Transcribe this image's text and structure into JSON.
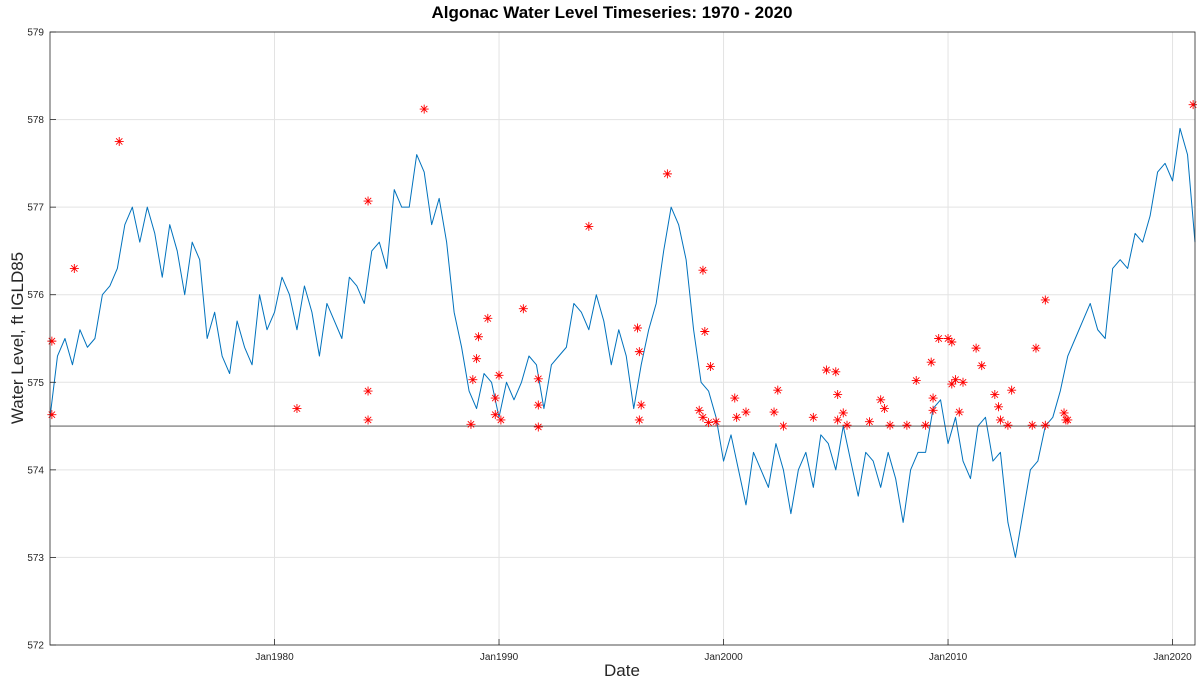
{
  "chart_data": {
    "type": "line",
    "title": "Algonac Water Level Timeseries: 1970 - 2020",
    "xlabel": "Date",
    "ylabel": "Water Level, ft IGLD85",
    "xlim": [
      "1970-01",
      "2021-01"
    ],
    "xticks": [
      {
        "value": "1980-01",
        "label": "Jan1980"
      },
      {
        "value": "1990-01",
        "label": "Jan1990"
      },
      {
        "value": "2000-01",
        "label": "Jan2000"
      },
      {
        "value": "2010-01",
        "label": "Jan2010"
      },
      {
        "value": "2020-01",
        "label": "Jan2020"
      }
    ],
    "ylim": [
      572,
      579
    ],
    "yticks": [
      572,
      573,
      574,
      575,
      576,
      577,
      578,
      579
    ],
    "grid": true,
    "reference_line": {
      "value": 574.5,
      "color": "#404040"
    },
    "series": [
      {
        "color": "#0072bd",
        "line": true,
        "x": [
          "1970-01",
          "1970-05",
          "1970-09",
          "1971-01",
          "1971-05",
          "1971-09",
          "1972-01",
          "1972-05",
          "1972-09",
          "1973-01",
          "1973-05",
          "1973-09",
          "1974-01",
          "1974-05",
          "1974-09",
          "1975-01",
          "1975-05",
          "1975-09",
          "1976-01",
          "1976-05",
          "1976-09",
          "1977-01",
          "1977-05",
          "1977-09",
          "1978-01",
          "1978-05",
          "1978-09",
          "1979-01",
          "1979-05",
          "1979-09",
          "1980-01",
          "1980-05",
          "1980-09",
          "1981-01",
          "1981-05",
          "1981-09",
          "1982-01",
          "1982-05",
          "1982-09",
          "1983-01",
          "1983-05",
          "1983-09",
          "1984-01",
          "1984-05",
          "1984-09",
          "1985-01",
          "1985-05",
          "1985-09",
          "1986-01",
          "1986-05",
          "1986-09",
          "1987-01",
          "1987-05",
          "1987-09",
          "1988-01",
          "1988-05",
          "1988-09",
          "1989-01",
          "1989-05",
          "1989-09",
          "1990-01",
          "1990-05",
          "1990-09",
          "1991-01",
          "1991-05",
          "1991-09",
          "1992-01",
          "1992-05",
          "1992-09",
          "1993-01",
          "1993-05",
          "1993-09",
          "1994-01",
          "1994-05",
          "1994-09",
          "1995-01",
          "1995-05",
          "1995-09",
          "1996-01",
          "1996-05",
          "1996-09",
          "1997-01",
          "1997-05",
          "1997-09",
          "1998-01",
          "1998-05",
          "1998-09",
          "1999-01",
          "1999-05",
          "1999-09",
          "2000-01",
          "2000-05",
          "2000-09",
          "2001-01",
          "2001-05",
          "2001-09",
          "2002-01",
          "2002-05",
          "2002-09",
          "2003-01",
          "2003-05",
          "2003-09",
          "2004-01",
          "2004-05",
          "2004-09",
          "2005-01",
          "2005-05",
          "2005-09",
          "2006-01",
          "2006-05",
          "2006-09",
          "2007-01",
          "2007-05",
          "2007-09",
          "2008-01",
          "2008-05",
          "2008-09",
          "2009-01",
          "2009-05",
          "2009-09",
          "2010-01",
          "2010-05",
          "2010-09",
          "2011-01",
          "2011-05",
          "2011-09",
          "2012-01",
          "2012-05",
          "2012-09",
          "2013-01",
          "2013-05",
          "2013-09",
          "2014-01",
          "2014-05",
          "2014-09",
          "2015-01",
          "2015-05",
          "2015-09",
          "2016-01",
          "2016-05",
          "2016-09",
          "2017-01",
          "2017-05",
          "2017-09",
          "2018-01",
          "2018-05",
          "2018-09",
          "2019-01",
          "2019-05",
          "2019-09",
          "2020-01",
          "2020-05",
          "2020-09",
          "2021-01"
        ],
        "values": [
          574.6,
          575.3,
          575.5,
          575.2,
          575.6,
          575.4,
          575.5,
          576.0,
          576.1,
          576.3,
          576.8,
          577.0,
          576.6,
          577.0,
          576.7,
          576.2,
          576.8,
          576.5,
          576.0,
          576.6,
          576.4,
          575.5,
          575.8,
          575.3,
          575.1,
          575.7,
          575.4,
          575.2,
          576.0,
          575.6,
          575.8,
          576.2,
          576.0,
          575.6,
          576.1,
          575.8,
          575.3,
          575.9,
          575.7,
          575.5,
          576.2,
          576.1,
          575.9,
          576.5,
          576.6,
          576.3,
          577.2,
          577.0,
          577.0,
          577.6,
          577.4,
          576.8,
          577.1,
          576.6,
          575.8,
          575.4,
          574.9,
          574.7,
          575.1,
          575.0,
          574.6,
          575.0,
          574.8,
          575.0,
          575.3,
          575.2,
          574.7,
          575.2,
          575.3,
          575.4,
          575.9,
          575.8,
          575.6,
          576.0,
          575.7,
          575.2,
          575.6,
          575.3,
          574.7,
          575.2,
          575.6,
          575.9,
          576.5,
          577.0,
          576.8,
          576.4,
          575.6,
          575.0,
          574.9,
          574.6,
          574.1,
          574.4,
          574.0,
          573.6,
          574.2,
          574.0,
          573.8,
          574.3,
          574.0,
          573.5,
          574.0,
          574.2,
          573.8,
          574.4,
          574.3,
          574.0,
          574.5,
          574.1,
          573.7,
          574.2,
          574.1,
          573.8,
          574.2,
          573.9,
          573.4,
          574.0,
          574.2,
          574.2,
          574.7,
          574.8,
          574.3,
          574.6,
          574.1,
          573.9,
          574.5,
          574.6,
          574.1,
          574.2,
          573.4,
          573.0,
          573.5,
          574.0,
          574.1,
          574.5,
          574.6,
          574.9,
          575.3,
          575.5,
          575.7,
          575.9,
          575.6,
          575.5,
          576.3,
          576.4,
          576.3,
          576.7,
          576.6,
          576.9,
          577.4,
          577.5,
          577.3,
          577.9,
          577.6,
          576.6
        ]
      },
      {
        "color": "#ff0000",
        "line": false,
        "marker": "asterisk",
        "x": [
          "1970-02",
          "1970-02",
          "1971-02",
          "1973-02",
          "1981-01",
          "1984-03",
          "1984-03",
          "1984-03",
          "1986-09",
          "1988-10",
          "1988-11",
          "1989-01",
          "1989-02",
          "1989-07",
          "1989-11",
          "1990-01",
          "1989-11",
          "1990-02",
          "1991-02",
          "1991-10",
          "1991-10",
          "1991-10",
          "1994-01",
          "1996-03",
          "1996-04",
          "1996-04",
          "1996-05",
          "1997-07",
          "1999-02",
          "1999-03",
          "1999-06",
          "1998-12",
          "1999-02",
          "1999-05",
          "1999-09",
          "2000-07",
          "2000-08",
          "2001-01",
          "2002-06",
          "2002-04",
          "2002-09",
          "2004-01",
          "2004-08",
          "2005-01",
          "2005-02",
          "2005-02",
          "2005-05",
          "2005-07",
          "2006-07",
          "2007-01",
          "2007-03",
          "2007-06",
          "2008-03",
          "2008-08",
          "2009-01",
          "2009-04",
          "2009-05",
          "2009-05",
          "2009-08",
          "2010-01",
          "2010-03",
          "2010-05",
          "2010-03",
          "2010-07",
          "2010-09",
          "2011-04",
          "2011-07",
          "2012-02",
          "2012-05",
          "2012-04",
          "2012-09",
          "2012-11",
          "2013-10",
          "2013-12",
          "2014-05",
          "2014-05",
          "2015-03",
          "2015-04",
          "2015-05",
          "2020-12"
        ],
        "values": [
          575.47,
          574.63,
          576.3,
          577.75,
          574.7,
          577.07,
          574.9,
          574.57,
          578.12,
          574.52,
          575.03,
          575.27,
          575.52,
          575.73,
          574.82,
          575.08,
          574.63,
          574.57,
          575.84,
          575.04,
          574.74,
          574.49,
          576.78,
          575.62,
          575.35,
          574.57,
          574.74,
          577.38,
          576.28,
          575.58,
          575.18,
          574.68,
          574.6,
          574.54,
          574.55,
          574.82,
          574.6,
          574.66,
          574.91,
          574.66,
          574.5,
          574.6,
          575.14,
          575.12,
          574.86,
          574.57,
          574.65,
          574.51,
          574.55,
          574.8,
          574.7,
          574.51,
          574.51,
          575.02,
          574.51,
          575.23,
          574.82,
          574.68,
          575.5,
          575.5,
          575.46,
          575.03,
          574.98,
          574.66,
          575.0,
          575.39,
          575.19,
          574.86,
          574.57,
          574.72,
          574.51,
          574.91,
          574.51,
          575.39,
          574.51,
          575.94,
          574.65,
          574.57,
          574.57,
          578.17
        ]
      }
    ]
  }
}
